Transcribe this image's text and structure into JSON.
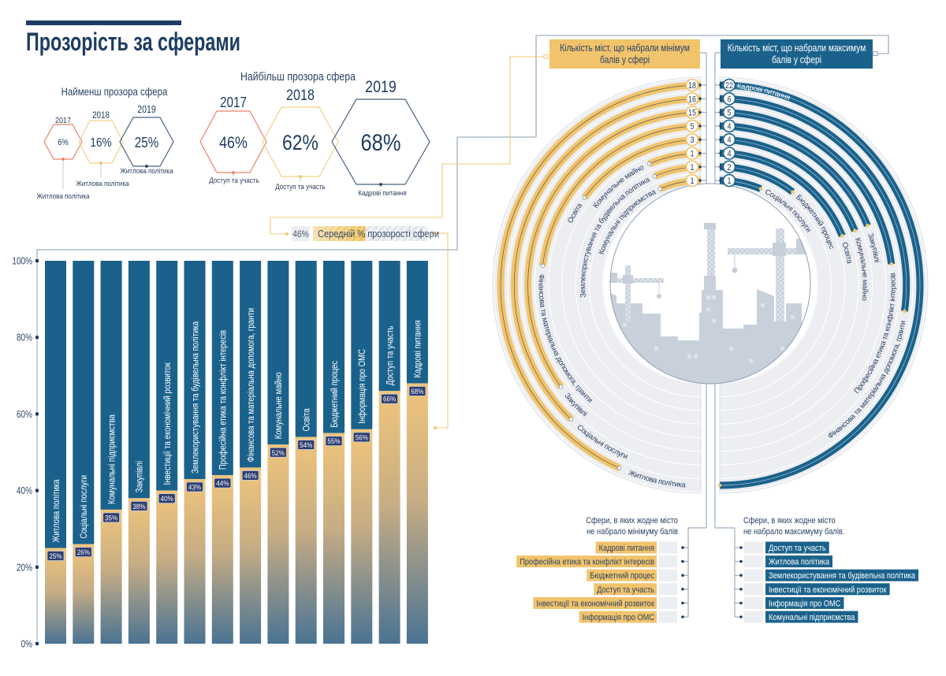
{
  "page": {
    "title": "Прозорість за сферами"
  },
  "least": {
    "title": "Найменш прозора сфера",
    "items": [
      {
        "year": "2017",
        "value": "6%",
        "sphere": "Житлова політика"
      },
      {
        "year": "2018",
        "value": "16%",
        "sphere": "Житлова політика"
      },
      {
        "year": "2019",
        "value": "25%",
        "sphere": "Житлова політика"
      }
    ]
  },
  "most": {
    "title": "Найбільш прозора сфера",
    "items": [
      {
        "year": "2017",
        "value": "46%",
        "sphere": "Доступ та участь"
      },
      {
        "year": "2018",
        "value": "62%",
        "sphere": "Доступ та участь"
      },
      {
        "year": "2019",
        "value": "68%",
        "sphere": "Кадрові питання"
      }
    ]
  },
  "average": {
    "value": "46%",
    "label": "Середній % прозорості сфери",
    "percent": 46
  },
  "rings_legend": {
    "min_lines": [
      "Кількість міст, що набрали мінімум",
      "балів у сфері"
    ],
    "max_lines": [
      "Кількість міст, що набрали максимум",
      "балів у сфері"
    ]
  },
  "no_min": {
    "title_lines": [
      "Сфери, в яких жодне місто",
      "не набрало мінімуму балів"
    ],
    "items": [
      "Кадрові питання",
      "Професійна етика та конфлікт інтересів",
      "Бюджетний процес",
      "Доступ та участь",
      "Інвестиції та економічний розвиток",
      "Інформація про ОМС"
    ]
  },
  "no_max": {
    "title_lines": [
      "Сфери, в яких жодне місто",
      "не набрало максимуму  балів."
    ],
    "items": [
      "Доступ та участь",
      "Житлова політика",
      "Землекористування та будівельна політика",
      "Інвестиції та економічний розвиток",
      "Інформація про ОМС",
      "Комунальні підприємства"
    ]
  },
  "colors": {
    "navy": "#1f3d62",
    "blue": "#1a628b",
    "yellow": "#f1c46c",
    "orange": "#ee7d66",
    "band_gray": "#eceef1",
    "label_box": "#2c3c6d"
  },
  "chart_data": [
    {
      "type": "bar",
      "title": "",
      "xlabel": "",
      "ylabel": "",
      "ylim": [
        0,
        100
      ],
      "yticks": [
        0,
        20,
        40,
        60,
        80,
        100
      ],
      "ytick_labels": [
        "0%",
        "20%",
        "40%",
        "60%",
        "80%",
        "100%"
      ],
      "grid": false,
      "legend": "none",
      "categories": [
        "Житлова політика",
        "Соціальні послуги",
        "Комунальні підприємства",
        "Закупівлі",
        "Інвестиції та економічний розвиток",
        "Землекористування та будівельна політика",
        "Професійна етика та конфлікт інтересів",
        "Фінансова та матеріальна допомога, гранти",
        "Комунальне майно",
        "Освіта",
        "Бюджетний процес",
        "Інформація про ОМС",
        "Доступ та участь",
        "Кадрові питання"
      ],
      "values": [
        25,
        26,
        35,
        38,
        40,
        43,
        44,
        46,
        52,
        54,
        55,
        56,
        66,
        68
      ],
      "value_labels": [
        "25%",
        "26%",
        "35%",
        "38%",
        "40%",
        "43%",
        "44%",
        "46%",
        "52%",
        "54%",
        "55%",
        "56%",
        "66%",
        "68%"
      ]
    },
    {
      "type": "bar",
      "layout": "radial",
      "title": "",
      "series": [
        {
          "name": "Кількість міст, що набрали мінімум балів у сфері",
          "side": "left",
          "color": "#f1c46c",
          "categories": [
            "Житлова політика",
            "Соціальні послуги",
            "Закупівлі",
            "Фінансова та матеріальна допомога, гранти",
            "Освіта",
            "Комунальне майно",
            "Землекористування та будівельна політика",
            "Комунальні підприємства"
          ],
          "values": [
            18,
            16,
            15,
            5,
            3,
            1,
            1,
            1
          ]
        },
        {
          "name": "Кількість міст, що набрали максимум балів у сфері",
          "side": "right",
          "color": "#1a628b",
          "categories": [
            "Кадрові питання",
            "Фінансова та матеріальна допомога, гранти",
            "Професійна етика та конфлікт інтересів",
            "Закупівлі",
            "Комунальне майно",
            "Освіта",
            "Бюджетний процес",
            "Соціальні послуги"
          ],
          "values": [
            22,
            6,
            5,
            4,
            4,
            4,
            2,
            1
          ]
        }
      ]
    }
  ]
}
